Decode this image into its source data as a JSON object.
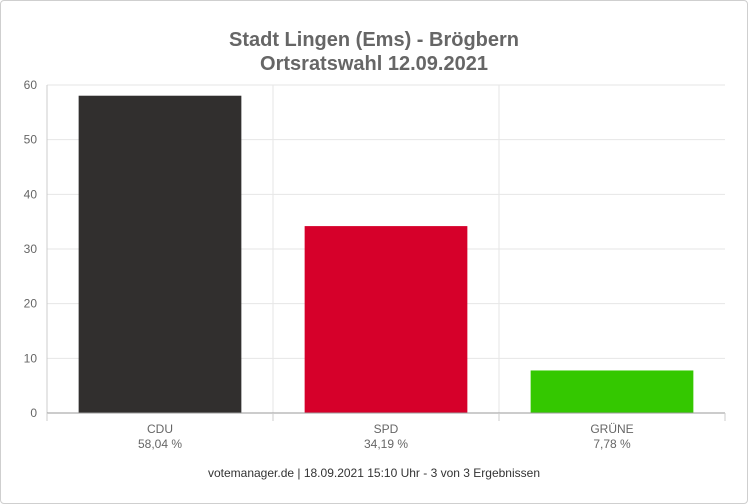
{
  "chart_data": {
    "type": "bar",
    "title": "Stadt Lingen (Ems) - Brögbern",
    "subtitle": "Ortsratswahl 12.09.2021",
    "categories": [
      "CDU",
      "SPD",
      "GRÜNE"
    ],
    "values": [
      58.04,
      34.19,
      7.78
    ],
    "value_labels": [
      "58,04 %",
      "34,19 %",
      "7,78 %"
    ],
    "colors": [
      "#312f2e",
      "#d6002a",
      "#34c800"
    ],
    "ylim": [
      0,
      60
    ],
    "yticks": [
      0,
      10,
      20,
      30,
      40,
      50,
      60
    ],
    "grid": true,
    "legend": "none"
  },
  "footer": "votemanager.de | 18.09.2021 15:10 Uhr - 3 von 3 Ergebnissen"
}
